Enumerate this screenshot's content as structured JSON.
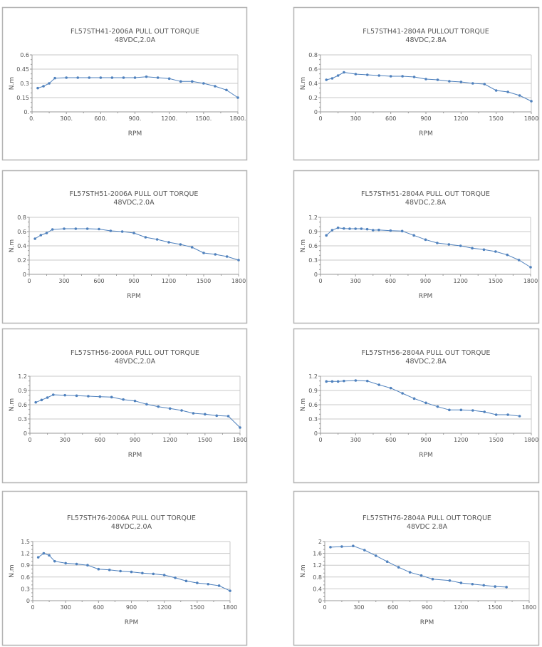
{
  "colors": {
    "series": "#4f81bd",
    "grid": "#c8c8c8",
    "axis": "#999999",
    "frame": "#b4b4b4",
    "text": "#555555"
  },
  "chart_data": [
    {
      "type": "line",
      "title": "FL57STH41-2006A  PULL OUT TORQUE",
      "subtitle": "48VDC,2.0A",
      "xlabel": "RPM",
      "ylabel": "N.m",
      "xlim": [
        0,
        1800
      ],
      "ylim": [
        0,
        0.6
      ],
      "grid": true,
      "xticks": [
        0,
        300,
        600,
        900,
        1200,
        1500,
        1800
      ],
      "xtick_labels": [
        "0.",
        "300.",
        "600.",
        "900.",
        "1200.",
        "1500.",
        "1800."
      ],
      "yticks": [
        0,
        0.15,
        0.3,
        0.45,
        0.6
      ],
      "ytick_labels": [
        "0.",
        "0.15",
        "0.3",
        "0.45",
        "0.6"
      ],
      "x": [
        50,
        100,
        150,
        200,
        300,
        400,
        500,
        600,
        700,
        800,
        900,
        1000,
        1100,
        1200,
        1300,
        1400,
        1500,
        1600,
        1700,
        1800
      ],
      "y": [
        0.25,
        0.27,
        0.3,
        0.355,
        0.36,
        0.36,
        0.36,
        0.36,
        0.36,
        0.36,
        0.36,
        0.37,
        0.36,
        0.35,
        0.32,
        0.32,
        0.3,
        0.27,
        0.23,
        0.15
      ]
    },
    {
      "type": "line",
      "title": "FL57STH41-2804A  PULLOUT TORQUE",
      "subtitle": "48VDC,2.8A",
      "xlabel": "RPM",
      "ylabel": "N.m",
      "xlim": [
        0,
        1800
      ],
      "ylim": [
        0,
        0.8
      ],
      "grid": true,
      "xticks": [
        0,
        300,
        600,
        900,
        1200,
        1500,
        1800
      ],
      "xtick_labels": [
        "0",
        "300",
        "600",
        "900",
        "1200",
        "1500",
        "1800"
      ],
      "yticks": [
        0,
        0.2,
        0.4,
        0.6,
        0.8
      ],
      "ytick_labels": [
        "0",
        "0.2",
        "0.4",
        "0.6",
        "0.8"
      ],
      "x": [
        50,
        100,
        150,
        200,
        300,
        400,
        500,
        600,
        700,
        800,
        900,
        1000,
        1100,
        1200,
        1300,
        1400,
        1500,
        1600,
        1700,
        1800
      ],
      "y": [
        0.45,
        0.47,
        0.51,
        0.555,
        0.53,
        0.52,
        0.51,
        0.5,
        0.5,
        0.49,
        0.46,
        0.45,
        0.43,
        0.42,
        0.4,
        0.39,
        0.3,
        0.28,
        0.23,
        0.15
      ]
    },
    {
      "type": "line",
      "title": "FL57STH51-2006A  PULL OUT TORQUE",
      "subtitle": "48VDC,2.0A",
      "xlabel": "RPM",
      "ylabel": "N.m",
      "xlim": [
        0,
        1800
      ],
      "ylim": [
        0,
        0.8
      ],
      "grid": true,
      "xticks": [
        0,
        300,
        600,
        900,
        1200,
        1500,
        1800
      ],
      "xtick_labels": [
        "0",
        "300",
        "600",
        "900",
        "1200",
        "1500",
        "1800"
      ],
      "yticks": [
        0,
        0.2,
        0.4,
        0.6,
        0.8
      ],
      "ytick_labels": [
        "0",
        "0.2",
        "0.4",
        "0.6",
        "0.8"
      ],
      "x": [
        50,
        100,
        150,
        200,
        300,
        400,
        500,
        600,
        700,
        800,
        900,
        1000,
        1100,
        1200,
        1300,
        1400,
        1500,
        1600,
        1700,
        1800
      ],
      "y": [
        0.5,
        0.55,
        0.58,
        0.63,
        0.64,
        0.64,
        0.64,
        0.635,
        0.61,
        0.6,
        0.58,
        0.52,
        0.49,
        0.45,
        0.42,
        0.38,
        0.3,
        0.28,
        0.25,
        0.2
      ]
    },
    {
      "type": "line",
      "title": "FL57STH51-2804A  PULL OUT TORQUE",
      "subtitle": "48VDC,2.8A",
      "xlabel": "RPM",
      "ylabel": "N.m",
      "xlim": [
        0,
        1800
      ],
      "ylim": [
        0,
        1.2
      ],
      "grid": true,
      "xticks": [
        0,
        300,
        600,
        900,
        1200,
        1500,
        1800
      ],
      "xtick_labels": [
        "0",
        "300",
        "600",
        "900",
        "1200",
        "1500",
        "1800"
      ],
      "yticks": [
        0,
        0.3,
        0.6,
        0.9,
        1.2
      ],
      "ytick_labels": [
        "0",
        "0.3",
        "0.6",
        "0.9",
        "1.2"
      ],
      "x": [
        50,
        100,
        150,
        200,
        250,
        300,
        350,
        400,
        450,
        500,
        600,
        700,
        800,
        900,
        1000,
        1100,
        1200,
        1300,
        1400,
        1500,
        1600,
        1700,
        1800
      ],
      "y": [
        0.82,
        0.93,
        0.98,
        0.965,
        0.96,
        0.96,
        0.96,
        0.95,
        0.93,
        0.935,
        0.92,
        0.91,
        0.82,
        0.73,
        0.66,
        0.63,
        0.6,
        0.55,
        0.52,
        0.48,
        0.41,
        0.3,
        0.15
      ]
    },
    {
      "type": "line",
      "title": "FL57STH56-2006A  PULL OUT TORQUE",
      "subtitle": "48VDC,2.0A",
      "xlabel": "RPM",
      "ylabel": "N.m",
      "xlim": [
        0,
        1800
      ],
      "ylim": [
        0,
        1.2
      ],
      "grid": true,
      "xticks": [
        0,
        300,
        600,
        900,
        1200,
        1500,
        1800
      ],
      "xtick_labels": [
        "0",
        "300",
        "600",
        "900",
        "1200",
        "1500",
        "1800"
      ],
      "yticks": [
        0,
        0.3,
        0.6,
        0.9,
        1.2
      ],
      "ytick_labels": [
        "0",
        "0.3",
        "0.6",
        "0.9",
        "1.2"
      ],
      "x": [
        50,
        100,
        150,
        200,
        300,
        400,
        500,
        600,
        700,
        800,
        900,
        1000,
        1100,
        1200,
        1300,
        1400,
        1500,
        1600,
        1700,
        1800
      ],
      "y": [
        0.65,
        0.7,
        0.75,
        0.81,
        0.8,
        0.79,
        0.78,
        0.77,
        0.76,
        0.71,
        0.68,
        0.61,
        0.56,
        0.52,
        0.48,
        0.42,
        0.4,
        0.37,
        0.36,
        0.12
      ]
    },
    {
      "type": "line",
      "title": "FL57STH56-2804A  PULL OUT TORQUE",
      "subtitle": "48VDC,2.8A",
      "xlabel": "RPM",
      "ylabel": "N.m",
      "xlim": [
        0,
        1800
      ],
      "ylim": [
        0,
        1.2
      ],
      "grid": true,
      "xticks": [
        0,
        300,
        600,
        900,
        1200,
        1500,
        1800
      ],
      "xtick_labels": [
        "0",
        "300",
        "600",
        "900",
        "1200",
        "1500",
        "1800"
      ],
      "yticks": [
        0,
        0.3,
        0.6,
        0.9,
        1.2
      ],
      "ytick_labels": [
        "0",
        "0.3",
        "0.6",
        "0.9",
        "1.2"
      ],
      "x": [
        50,
        100,
        150,
        200,
        300,
        400,
        500,
        600,
        700,
        800,
        900,
        1000,
        1100,
        1200,
        1300,
        1400,
        1500,
        1600,
        1700
      ],
      "y": [
        1.09,
        1.09,
        1.09,
        1.1,
        1.11,
        1.1,
        1.02,
        0.95,
        0.84,
        0.73,
        0.64,
        0.56,
        0.49,
        0.49,
        0.48,
        0.45,
        0.39,
        0.39,
        0.36
      ]
    },
    {
      "type": "line",
      "title": "FL57STH76-2006A  PULL OUT TORQUE",
      "subtitle": "48VDC,2.0A",
      "xlabel": "RPM",
      "ylabel": "N.m",
      "xlim": [
        0,
        1800
      ],
      "ylim": [
        0,
        1.5
      ],
      "grid": true,
      "xticks": [
        0,
        300,
        600,
        900,
        1200,
        1500,
        1800
      ],
      "xtick_labels": [
        "0",
        "300",
        "600",
        "900",
        "1200",
        "1500",
        "1800"
      ],
      "yticks": [
        0,
        0.3,
        0.6,
        0.9,
        1.2,
        1.5
      ],
      "ytick_labels": [
        "0",
        "0.3",
        "0.6",
        "0.9",
        "1.2",
        "1.5"
      ],
      "x": [
        50,
        100,
        150,
        200,
        300,
        400,
        500,
        600,
        700,
        800,
        900,
        1000,
        1100,
        1200,
        1300,
        1400,
        1500,
        1600,
        1700,
        1800
      ],
      "y": [
        1.1,
        1.2,
        1.15,
        1.0,
        0.95,
        0.93,
        0.9,
        0.8,
        0.78,
        0.75,
        0.73,
        0.7,
        0.68,
        0.65,
        0.58,
        0.5,
        0.45,
        0.42,
        0.38,
        0.25
      ]
    },
    {
      "type": "line",
      "title": "FL57STH76-2804A  PULL  OUT  TORQUE",
      "subtitle": "48VDC 2.8A",
      "xlabel": "RPM",
      "ylabel": "N.m",
      "xlim": [
        0,
        1800
      ],
      "ylim": [
        0,
        2
      ],
      "grid": true,
      "xticks": [
        0,
        300,
        600,
        900,
        1200,
        1500,
        1800
      ],
      "xtick_labels": [
        "0",
        "300",
        "600",
        "900",
        "1200",
        "1500",
        "1800"
      ],
      "yticks": [
        0,
        0.4,
        0.8,
        1.2,
        1.6,
        2
      ],
      "ytick_labels": [
        "0",
        "0.4",
        "0.8",
        "1.2",
        "1.6",
        "2"
      ],
      "x": [
        50,
        150,
        250,
        350,
        450,
        550,
        650,
        750,
        850,
        950,
        1100,
        1200,
        1300,
        1400,
        1500,
        1600
      ],
      "y": [
        1.81,
        1.83,
        1.85,
        1.71,
        1.52,
        1.32,
        1.13,
        0.96,
        0.85,
        0.73,
        0.68,
        0.6,
        0.56,
        0.52,
        0.48,
        0.46
      ]
    }
  ]
}
